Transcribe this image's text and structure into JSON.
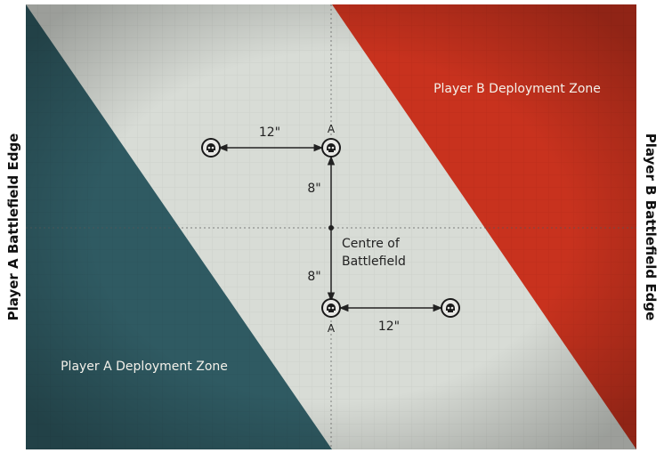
{
  "edges": {
    "left": "Player A Battlefield Edge",
    "right": "Player B Battlefield Edge"
  },
  "zones": {
    "player_a": "Player A Deployment Zone",
    "player_b": "Player B Deployment Zone"
  },
  "centre": {
    "line1": "Centre of",
    "line2": "Battlefield"
  },
  "distances": {
    "top_horizontal": "12\"",
    "top_vertical": "8\"",
    "bottom_vertical": "8\"",
    "bottom_horizontal": "12\""
  },
  "markers": {
    "upper": "A",
    "lower": "A"
  },
  "colors": {
    "player_a_zone": "#2f5a62",
    "player_b_zone": "#c8321e",
    "no_mans_land": "#d8dcd6",
    "edge_label": "#111111"
  },
  "icons": {
    "objective": "skull-icon"
  }
}
